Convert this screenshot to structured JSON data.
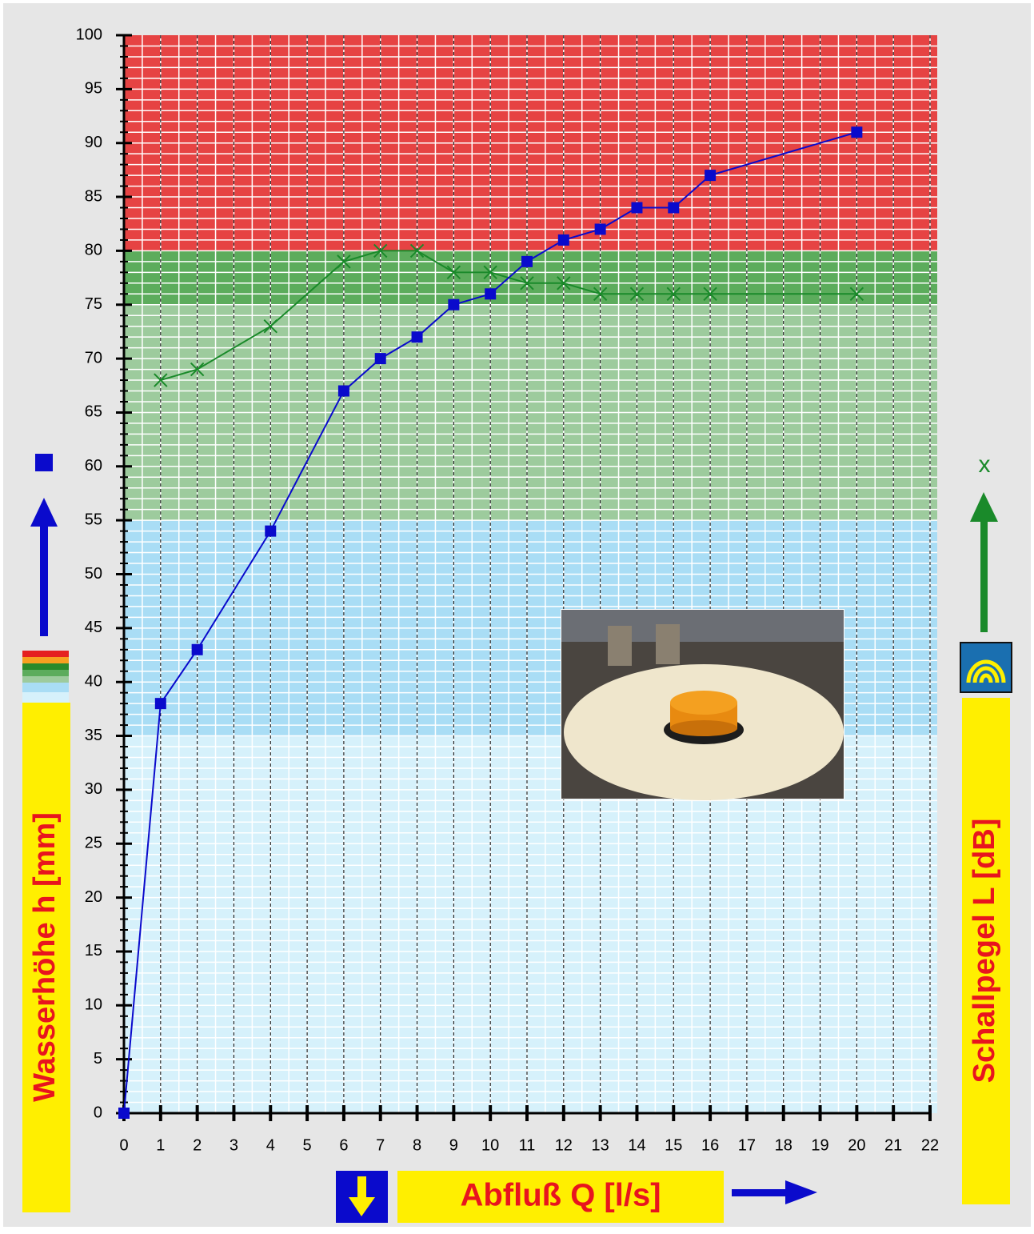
{
  "chart_data": {
    "type": "line",
    "xlabel": "Abfluß Q [l/s]",
    "ylabel": "Wasserhöhe h [mm]",
    "y2label": "Schallpegel L [dB]",
    "y2_symbol": "x",
    "xlim": [
      0,
      22
    ],
    "xticks": [
      0,
      1,
      2,
      3,
      4,
      5,
      6,
      7,
      8,
      9,
      10,
      11,
      12,
      13,
      14,
      15,
      16,
      17,
      18,
      19,
      20,
      21,
      22
    ],
    "ylim": [
      0,
      100
    ],
    "yticks": [
      0,
      5,
      10,
      15,
      20,
      25,
      30,
      35,
      40,
      45,
      50,
      55,
      60,
      65,
      70,
      75,
      80,
      85,
      90,
      95,
      100
    ],
    "xminor": 0.5,
    "yminor": 1,
    "grid": true,
    "bands": [
      {
        "from": 0,
        "to": 35,
        "color": "#d6f1fb"
      },
      {
        "from": 35,
        "to": 55,
        "color": "#a9ddf5"
      },
      {
        "from": 55,
        "to": 75,
        "color": "#9dcb9d"
      },
      {
        "from": 75,
        "to": 80,
        "color": "#5cac5c"
      },
      {
        "from": 80,
        "to": 100,
        "color": "#e64343"
      }
    ],
    "series": [
      {
        "color": "#0a0acc",
        "marker": "square",
        "x": [
          0,
          1,
          2,
          4,
          6,
          7,
          8,
          9,
          10,
          11,
          12,
          13,
          14,
          15,
          16,
          20
        ],
        "values": [
          0,
          38,
          43,
          54,
          67,
          70,
          72,
          75,
          76,
          79,
          81,
          82,
          84,
          84,
          87,
          91
        ]
      },
      {
        "color": "#1a8a2a",
        "marker": "cross",
        "x": [
          1,
          2,
          4,
          6,
          7,
          8,
          9,
          10,
          11,
          12,
          13,
          14,
          15,
          16,
          20
        ],
        "values": [
          68,
          69,
          73,
          79,
          80,
          80,
          78,
          78,
          77,
          77,
          76,
          76,
          76,
          76,
          76
        ]
      }
    ]
  }
}
